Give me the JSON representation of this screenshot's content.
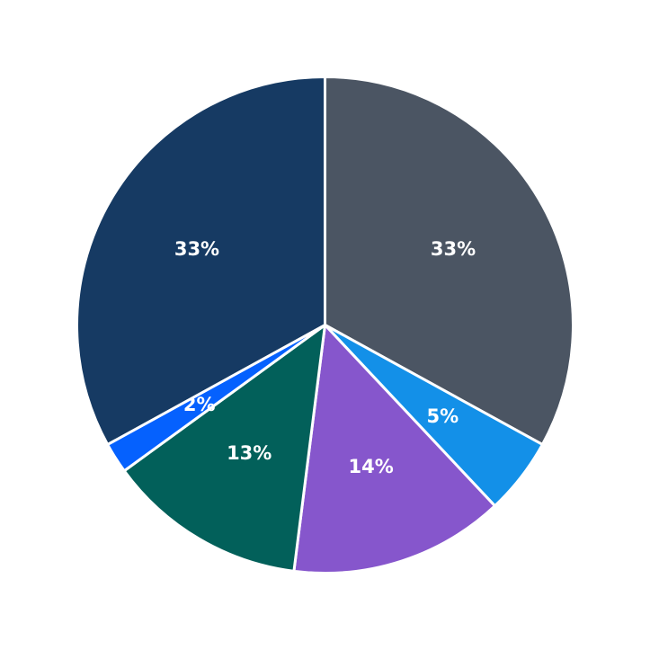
{
  "chart_data": {
    "type": "pie",
    "title": "",
    "start_angle_deg": 90,
    "direction": "clockwise",
    "slices": [
      {
        "label": "33%",
        "value": 33,
        "color": "#4b5563"
      },
      {
        "label": "5%",
        "value": 5,
        "color": "#1390e8"
      },
      {
        "label": "14%",
        "value": 14,
        "color": "#8656cc"
      },
      {
        "label": "13%",
        "value": 13,
        "color": "#02605a"
      },
      {
        "label": "2%",
        "value": 2,
        "color": "#0561fe"
      },
      {
        "label": "33%",
        "value": 33,
        "color": "#163a63"
      }
    ]
  }
}
